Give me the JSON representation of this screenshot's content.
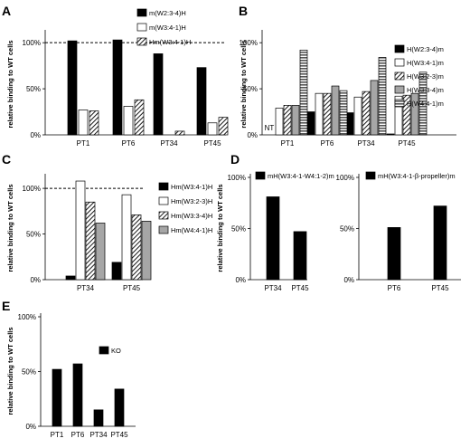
{
  "chart_data": [
    {
      "panel": "A",
      "type": "bar",
      "ylabel": "relative binding to WT cells",
      "yticks": [
        "0%",
        "50%",
        "100%"
      ],
      "ylim": [
        0,
        110
      ],
      "reference_line": 100,
      "categories": [
        "PT1",
        "PT6",
        "PT34",
        "PT45"
      ],
      "series": [
        {
          "name": "m(W2:3-4)H",
          "values": [
            102,
            103,
            88,
            73
          ],
          "style": "solid",
          "color": "#000000"
        },
        {
          "name": "m(W3:4-1)H",
          "values": [
            27,
            31,
            0,
            13
          ],
          "style": "white",
          "color": "#ffffff"
        },
        {
          "name": "Hm(W3:4-1)H",
          "values": [
            26,
            38,
            4,
            19
          ],
          "style": "diag",
          "color": "#000000"
        }
      ],
      "legend_position": "top-right"
    },
    {
      "panel": "B",
      "type": "bar",
      "ylabel": "relative binding to WT cells",
      "yticks": [
        "0%",
        "50%",
        "100%"
      ],
      "ylim": [
        0,
        110
      ],
      "categories": [
        "PT1",
        "PT6",
        "PT34",
        "PT45"
      ],
      "annotation": "NT",
      "series": [
        {
          "name": "H(W2:3-4)m",
          "values": [
            0,
            25,
            24,
            1
          ],
          "style": "solid",
          "color": "#000000"
        },
        {
          "name": "H(W3:4-1)m",
          "values": [
            29,
            45,
            41,
            42
          ],
          "style": "white",
          "color": "#ffffff"
        },
        {
          "name": "H(W3:2-3)m",
          "values": [
            32,
            45,
            47,
            43
          ],
          "style": "diag",
          "color": "#000000"
        },
        {
          "name": "H(W3:3-4)m",
          "values": [
            32,
            53,
            59,
            45
          ],
          "style": "gray",
          "color": "#a6a6a6"
        },
        {
          "name": "H(W4:4-1)m",
          "values": [
            92,
            48,
            84,
            68
          ],
          "style": "hstripe",
          "color": "#6e6e6e"
        }
      ],
      "legend_position": "right"
    },
    {
      "panel": "C",
      "type": "bar",
      "ylabel": "relative binding to WT cells",
      "yticks": [
        "0%",
        "50%",
        "100%"
      ],
      "ylim": [
        0,
        112
      ],
      "reference_line": 100,
      "categories": [
        "PT34",
        "PT45"
      ],
      "series": [
        {
          "name": "Hm(W3:4-1)H",
          "values": [
            4,
            19
          ],
          "style": "solid",
          "color": "#000000"
        },
        {
          "name": "Hm(W3:2-3)H",
          "values": [
            108,
            93
          ],
          "style": "white",
          "color": "#ffffff"
        },
        {
          "name": "Hm(W3:3-4)H",
          "values": [
            85,
            71
          ],
          "style": "diag",
          "color": "#000000"
        },
        {
          "name": "Hm(W4:4-1)H",
          "values": [
            62,
            64
          ],
          "style": "gray",
          "color": "#a6a6a6"
        }
      ],
      "legend_position": "right"
    },
    {
      "panel": "D",
      "type": "bar",
      "ylabel": "relative binding to WT cells",
      "yticks": [
        "0%",
        "50%",
        "100%"
      ],
      "ylim": [
        0,
        100
      ],
      "categories": [
        "PT34",
        "PT45"
      ],
      "series": [
        {
          "name": "mH(W3:4-1-W4:1-2)m",
          "values": [
            81,
            47
          ],
          "style": "solid",
          "color": "#000000"
        }
      ],
      "legend_position": "top"
    },
    {
      "panel": "",
      "type": "bar",
      "yticks": [
        "0%",
        "50%",
        "100%"
      ],
      "ylim": [
        0,
        100
      ],
      "categories": [
        "PT6",
        "PT45"
      ],
      "series": [
        {
          "name": "mH(W3:4-1-β-propeller)m",
          "values": [
            51,
            72
          ],
          "style": "solid",
          "color": "#000000"
        }
      ],
      "legend_position": "top"
    },
    {
      "panel": "E",
      "type": "bar",
      "ylabel": "relative binding to WT cells",
      "yticks": [
        "0%",
        "50%",
        "100%"
      ],
      "ylim": [
        0,
        100
      ],
      "categories": [
        "PT1",
        "PT6",
        "PT34",
        "PT45"
      ],
      "series": [
        {
          "name": "KO",
          "values": [
            52,
            57,
            15,
            34
          ],
          "style": "solid",
          "color": "#000000"
        }
      ],
      "legend_position": "top-right"
    }
  ]
}
